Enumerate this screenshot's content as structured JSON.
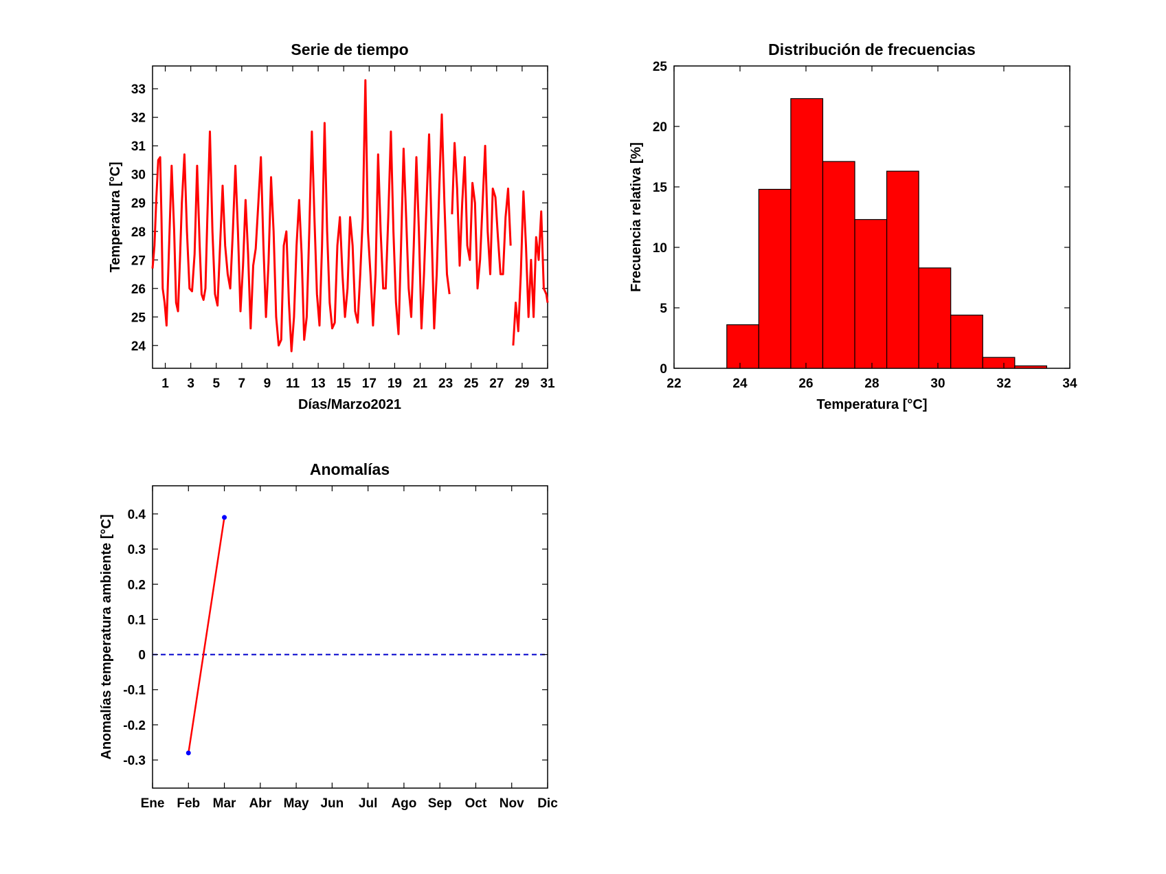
{
  "colors": {
    "series_line": "#ff0000",
    "bar_fill": "#ff0000",
    "bar_edge": "#000000",
    "marker": "#0000ff",
    "zero_line": "#0000cc",
    "axes": "#000000"
  },
  "chart_data": [
    {
      "id": "time_series",
      "type": "line",
      "title": "Serie de tiempo",
      "xlabel": "Días/Marzo2021",
      "ylabel": "Temperatura [°C]",
      "xlim": [
        0,
        31
      ],
      "ylim": [
        23.2,
        33.8
      ],
      "xticks": [
        1,
        3,
        5,
        7,
        9,
        11,
        13,
        15,
        17,
        19,
        21,
        23,
        25,
        27,
        29,
        31
      ],
      "xtick_labels": [
        "1",
        "3",
        "5",
        "7",
        "9",
        "11",
        "13",
        "15",
        "17",
        "19",
        "21",
        "23",
        "25",
        "27",
        "29",
        "31"
      ],
      "yticks": [
        24,
        25,
        26,
        27,
        28,
        29,
        30,
        31,
        32,
        33
      ],
      "ytick_labels": [
        "24",
        "25",
        "26",
        "27",
        "28",
        "29",
        "30",
        "31",
        "32",
        "33"
      ],
      "grid": false,
      "series": [
        {
          "color": "#ff0000",
          "segments": [
            {
              "x": [
                0.0,
                0.15,
                0.3,
                0.45,
                0.6,
                0.7,
                0.8,
                0.95,
                1.1,
                1.3,
                1.5,
                1.7,
                1.85,
                2.0,
                2.15,
                2.3,
                2.5,
                2.7,
                2.9,
                3.1,
                3.3,
                3.5,
                3.7,
                3.85,
                4.0,
                4.15,
                4.3,
                4.5,
                4.7,
                4.9,
                5.1,
                5.3,
                5.5,
                5.7,
                5.9,
                6.1,
                6.3,
                6.5,
                6.7,
                6.9,
                7.1,
                7.3,
                7.5,
                7.7,
                7.9,
                8.1,
                8.3,
                8.5,
                8.7,
                8.9,
                9.1,
                9.3,
                9.5,
                9.7,
                9.9,
                10.1,
                10.3,
                10.5,
                10.7,
                10.9,
                11.1,
                11.3,
                11.5,
                11.7,
                11.9,
                12.1,
                12.3,
                12.5,
                12.7,
                12.9,
                13.1,
                13.3,
                13.5,
                13.7,
                13.9,
                14.1,
                14.3,
                14.5,
                14.7,
                14.9,
                15.1,
                15.3,
                15.5,
                15.7,
                15.9,
                16.1,
                16.3,
                16.5,
                16.7,
                16.9,
                17.1,
                17.3,
                17.5,
                17.7,
                17.9,
                18.1,
                18.3,
                18.5,
                18.7,
                18.9,
                19.1,
                19.3,
                19.5,
                19.7,
                19.9,
                20.1,
                20.3,
                20.5,
                20.7,
                20.9,
                21.1,
                21.3,
                21.5,
                21.7,
                21.9,
                22.1,
                22.3,
                22.5,
                22.7,
                22.9,
                23.1,
                23.3
              ],
              "y": [
                26.7,
                27.5,
                29.2,
                30.5,
                30.6,
                28.5,
                26.0,
                25.5,
                24.7,
                27.5,
                30.3,
                28.0,
                25.5,
                25.2,
                27.0,
                29.0,
                30.7,
                28.0,
                26.0,
                25.9,
                27.2,
                30.3,
                27.5,
                25.8,
                25.6,
                26.0,
                28.5,
                31.5,
                28.0,
                25.8,
                25.4,
                27.5,
                29.6,
                27.5,
                26.5,
                26.0,
                28.0,
                30.3,
                28.0,
                25.2,
                26.8,
                29.1,
                27.2,
                24.6,
                26.8,
                27.4,
                29.0,
                30.6,
                27.5,
                25.0,
                26.9,
                29.9,
                28.0,
                25.0,
                24.0,
                24.2,
                27.5,
                28.0,
                25.5,
                23.8,
                25.0,
                27.5,
                29.1,
                27.2,
                24.2,
                25.0,
                28.0,
                31.5,
                28.5,
                25.8,
                24.7,
                27.5,
                31.8,
                28.0,
                25.5,
                24.6,
                24.8,
                27.5,
                28.5,
                26.5,
                25.0,
                26.0,
                28.5,
                27.5,
                25.2,
                24.8,
                26.5,
                28.5,
                33.3,
                28.0,
                26.5,
                24.7,
                26.5,
                30.7,
                28.0,
                26.0,
                26.0,
                28.5,
                31.5,
                28.0,
                25.5,
                24.4,
                27.5,
                30.9,
                28.5,
                26.0,
                25.0,
                27.5,
                30.6,
                28.0,
                24.6,
                26.5,
                29.0,
                31.4,
                28.0,
                24.6,
                26.5,
                29.5,
                32.1,
                29.0,
                26.5,
                25.8
              ]
            },
            {
              "x": [
                23.5,
                23.7,
                23.9,
                24.1,
                24.3,
                24.5,
                24.7,
                24.9,
                25.1,
                25.3,
                25.5,
                25.7,
                25.9,
                26.1,
                26.3,
                26.5,
                26.7,
                26.9,
                27.1,
                27.3,
                27.5,
                27.7,
                27.9,
                28.1
              ],
              "y": [
                28.6,
                31.1,
                29.5,
                26.8,
                29.0,
                30.6,
                27.5,
                27.0,
                29.7,
                29.0,
                26.0,
                27.0,
                29.0,
                31.0,
                28.0,
                26.5,
                29.5,
                29.2,
                27.8,
                26.5,
                26.5,
                28.5,
                29.5,
                27.5
              ]
            },
            {
              "x": [
                28.3,
                28.5,
                28.7,
                28.9,
                29.1,
                29.3,
                29.5,
                29.7,
                29.9,
                30.1,
                30.3,
                30.5,
                30.7,
                30.9,
                31.0
              ],
              "y": [
                24.0,
                25.5,
                24.5,
                26.5,
                29.4,
                27.5,
                25.0,
                27.0,
                25.0,
                27.8,
                27.0,
                28.7,
                26.0,
                25.8,
                25.5
              ]
            }
          ]
        }
      ]
    },
    {
      "id": "histogram",
      "type": "bar",
      "title": "Distribución de frecuencias",
      "xlabel": "Temperatura [°C]",
      "ylabel": "Frecuencia relativa [%]",
      "xlim": [
        22,
        34
      ],
      "ylim": [
        0,
        25
      ],
      "xticks": [
        22,
        24,
        26,
        28,
        30,
        32,
        34
      ],
      "xtick_labels": [
        "22",
        "24",
        "26",
        "28",
        "30",
        "32",
        "34"
      ],
      "yticks": [
        0,
        5,
        10,
        15,
        20,
        25
      ],
      "ytick_labels": [
        "0",
        "5",
        "10",
        "15",
        "20",
        "25"
      ],
      "grid": false,
      "bin_edges": [
        23.6,
        24.57,
        25.54,
        26.51,
        27.48,
        28.45,
        29.42,
        30.39,
        31.36,
        32.33,
        33.3
      ],
      "values": [
        3.6,
        14.8,
        22.3,
        17.1,
        12.3,
        16.3,
        8.3,
        4.4,
        0.9,
        0.2
      ]
    },
    {
      "id": "anomalies",
      "type": "line",
      "title": "Anomalías",
      "xlabel": "",
      "ylabel": "Anomalías temperatura ambiente [°C]",
      "categories": [
        "Ene",
        "Feb",
        "Mar",
        "Abr",
        "May",
        "Jun",
        "Jul",
        "Ago",
        "Sep",
        "Oct",
        "Nov",
        "Dic"
      ],
      "xlim": [
        1,
        12
      ],
      "ylim": [
        -0.38,
        0.48
      ],
      "yticks": [
        -0.3,
        -0.2,
        -0.1,
        0,
        0.1,
        0.2,
        0.3,
        0.4
      ],
      "ytick_labels": [
        "-0.3",
        "-0.2",
        "-0.1",
        "0",
        "0.1",
        "0.2",
        "0.3",
        "0.4"
      ],
      "grid": false,
      "series": [
        {
          "x": [
            2,
            3
          ],
          "y": [
            -0.28,
            0.39
          ],
          "color": "#ff0000",
          "marker_color": "#0000ff"
        }
      ],
      "reference_line": {
        "y": 0,
        "style": "dashed",
        "color": "#0000cc"
      }
    }
  ]
}
